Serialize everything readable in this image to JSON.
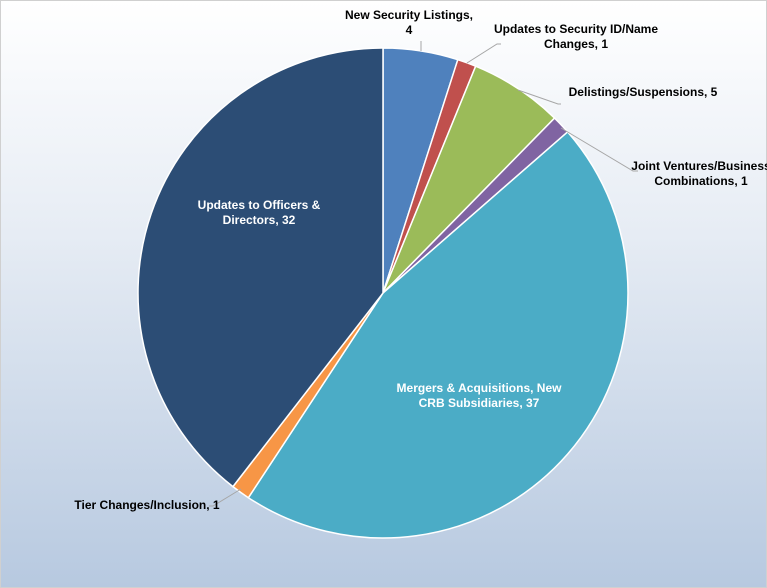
{
  "chart_data": {
    "type": "pie",
    "start_angle": "12 o'clock",
    "direction": "clockwise",
    "slices": [
      {
        "label": "New Security Listings",
        "value": 4,
        "color": "#4f81bd"
      },
      {
        "label": "Updates to Security ID/Name Changes",
        "value": 1,
        "color": "#c0504d"
      },
      {
        "label": "Delistings/Suspensions",
        "value": 5,
        "color": "#9bbb59"
      },
      {
        "label": "Joint Ventures/Business Combinations",
        "value": 1,
        "color": "#8064a2"
      },
      {
        "label": "Mergers & Acquisitions, New CRB Subsidiaries",
        "value": 37,
        "color": "#4bacc6"
      },
      {
        "label": "Tier Changes/Inclusion",
        "value": 1,
        "color": "#f79646"
      },
      {
        "label": "Updates to Officers & Directors",
        "value": 32,
        "color": "#2c4d75"
      }
    ],
    "data_labels": [
      [
        "New Security Listings,",
        "4"
      ],
      [
        "Updates to Security ID/Name",
        "Changes, 1"
      ],
      [
        "Delistings/Suspensions, 5"
      ],
      [
        "Joint Ventures/Business",
        "Combinations, 1"
      ],
      [
        "Mergers & Acquisitions, New",
        "CRB Subsidiaries, 37"
      ],
      [
        "Tier Changes/Inclusion, 1"
      ],
      [
        "Updates to Officers &",
        "Directors, 32"
      ]
    ],
    "legend": "none"
  }
}
